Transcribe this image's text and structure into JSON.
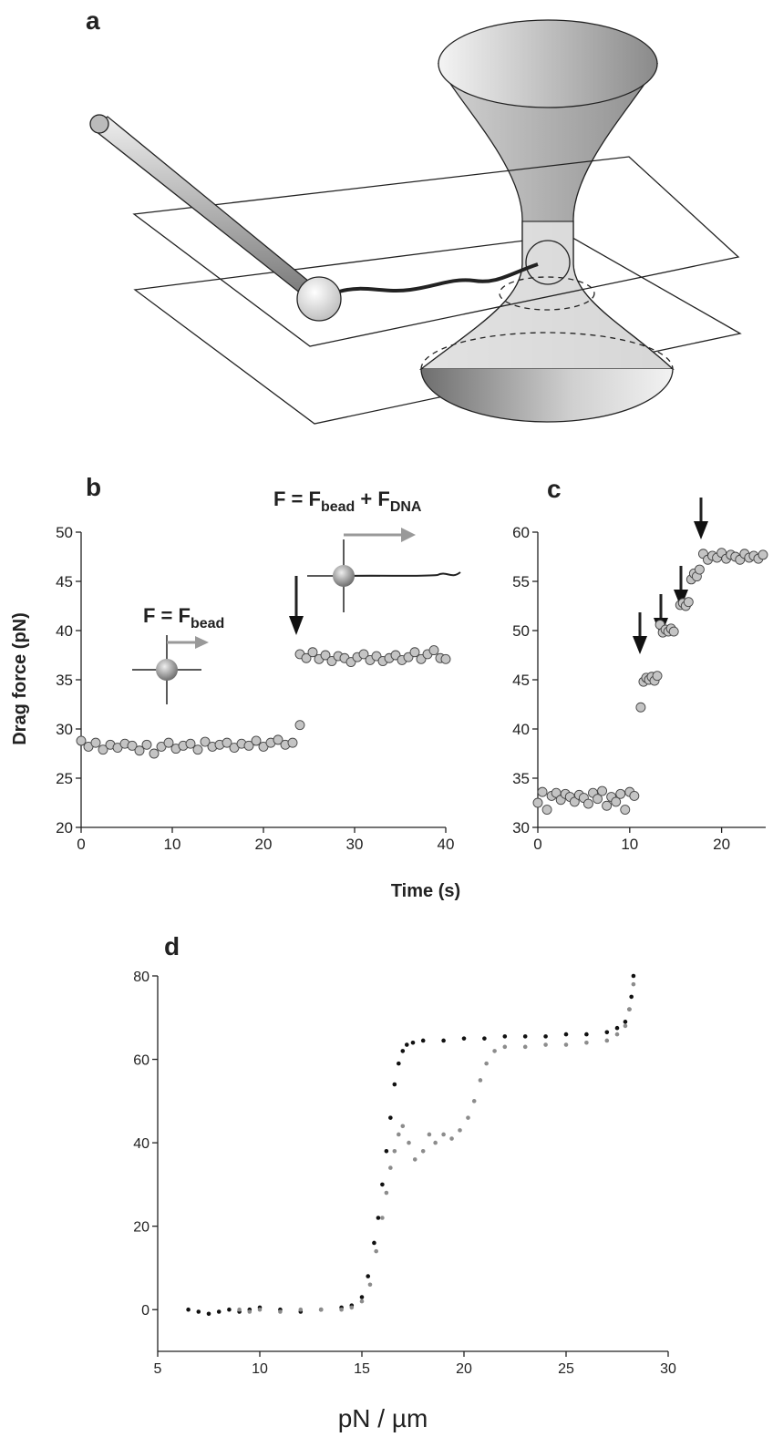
{
  "panel_labels": [
    "a",
    "b",
    "c",
    "d"
  ],
  "time_label": "Time (s)",
  "chart_data": [
    {
      "type": "scatter",
      "ylabel": "Drag force (pN)",
      "marker_color": "#c4c4c4",
      "annotations": [
        [
          {
            "text": "F = F",
            "sub": false
          },
          {
            "text": "bead",
            "sub": true
          }
        ],
        [
          {
            "text": "F = F",
            "sub": false
          },
          {
            "text": "bead",
            "sub": true
          },
          {
            "text": " + F",
            "sub": false
          },
          {
            "text": "DNA",
            "sub": true
          }
        ]
      ],
      "xlim": [
        0,
        40
      ],
      "xticks": [
        0,
        10,
        20,
        30,
        40
      ],
      "ylim": [
        20,
        50
      ],
      "yticks": [
        20,
        25,
        30,
        35,
        40,
        45,
        50
      ],
      "x": [
        0,
        0.8,
        1.6,
        2.4,
        3.2,
        4,
        4.8,
        5.6,
        6.4,
        7.2,
        8,
        8.8,
        9.6,
        10.4,
        11.2,
        12,
        12.8,
        13.6,
        14.4,
        15.2,
        16,
        16.8,
        17.6,
        18.4,
        19.2,
        20,
        20.8,
        21.6,
        22.4,
        23.2,
        24,
        24,
        24.7,
        25.4,
        26.1,
        26.8,
        27.5,
        28.2,
        28.9,
        29.6,
        30.3,
        31,
        31.7,
        32.4,
        33.1,
        33.8,
        34.5,
        35.2,
        35.9,
        36.6,
        37.3,
        38,
        38.7,
        39.4,
        40
      ],
      "values": [
        28.8,
        28.2,
        28.6,
        27.9,
        28.4,
        28.1,
        28.5,
        28.3,
        27.8,
        28.4,
        27.5,
        28.2,
        28.6,
        28,
        28.3,
        28.5,
        27.9,
        28.7,
        28.2,
        28.4,
        28.6,
        28.1,
        28.5,
        28.3,
        28.8,
        28.2,
        28.6,
        28.9,
        28.4,
        28.6,
        30.4,
        37.6,
        37.2,
        37.8,
        37.1,
        37.5,
        36.9,
        37.4,
        37.2,
        36.8,
        37.3,
        37.6,
        37,
        37.4,
        36.9,
        37.2,
        37.5,
        37,
        37.3,
        37.8,
        37.1,
        37.6,
        38,
        37.2,
        37.1
      ]
    },
    {
      "type": "scatter",
      "marker_color": "#c4c4c4",
      "xlim": [
        0,
        24.8
      ],
      "xticks": [
        0,
        10,
        20
      ],
      "ylim": [
        30,
        60
      ],
      "yticks": [
        30,
        35,
        40,
        45,
        50,
        55,
        60
      ],
      "x": [
        0,
        0.5,
        1,
        1.5,
        2,
        2.5,
        3,
        3.5,
        4,
        4.5,
        5,
        5.5,
        6,
        6.5,
        7,
        7.5,
        8,
        8.5,
        9,
        9.5,
        10,
        10.5,
        11.2,
        11.5,
        11.8,
        12.1,
        12.4,
        12.7,
        13,
        13.3,
        13.6,
        13.9,
        14.2,
        14.5,
        14.8,
        15.5,
        15.8,
        16.1,
        16.4,
        16.7,
        17,
        17.3,
        17.6,
        18,
        18.5,
        19,
        19.5,
        20,
        20.5,
        21,
        21.5,
        22,
        22.5,
        23,
        23.5,
        24,
        24.5
      ],
      "values": [
        32.5,
        33.6,
        31.8,
        33.2,
        33.5,
        32.8,
        33.4,
        33.1,
        32.6,
        33.3,
        33,
        32.4,
        33.5,
        32.9,
        33.7,
        32.2,
        33.1,
        32.6,
        33.4,
        31.8,
        33.6,
        33.2,
        42.2,
        44.8,
        45.2,
        45,
        45.3,
        44.9,
        45.4,
        50.6,
        49.8,
        50.1,
        49.9,
        50.2,
        49.9,
        52.6,
        52.8,
        52.5,
        52.9,
        55.2,
        55.8,
        55.5,
        56.2,
        57.8,
        57.2,
        57.6,
        57.4,
        57.9,
        57.3,
        57.7,
        57.5,
        57.2,
        57.8,
        57.4,
        57.6,
        57.3,
        57.7
      ]
    },
    {
      "type": "scatter",
      "xlabel": "pN / µm",
      "xlim": [
        5,
        30
      ],
      "xticks": [
        5,
        10,
        15,
        20,
        25,
        30
      ],
      "ylim": [
        -10,
        80
      ],
      "yticks": [
        0,
        20,
        40,
        60,
        80
      ],
      "series": [
        {
          "color": "#111111",
          "x": [
            6.5,
            7,
            7.5,
            8,
            8.5,
            9,
            9.5,
            10,
            11,
            12,
            13,
            14,
            14.5,
            15,
            15.3,
            15.6,
            15.8,
            16,
            16.2,
            16.4,
            16.6,
            16.8,
            17,
            17.2,
            17.5,
            18,
            19,
            20,
            21,
            22,
            23,
            24,
            25,
            26,
            27,
            27.5,
            27.9,
            28.1,
            28.2,
            28.3
          ],
          "values": [
            0,
            -0.5,
            -1,
            -0.5,
            0,
            -0.5,
            0,
            0.5,
            0,
            -0.5,
            0,
            0.5,
            1,
            3,
            8,
            16,
            22,
            30,
            38,
            46,
            54,
            59,
            62,
            63.5,
            64,
            64.5,
            64.5,
            65,
            65,
            65.5,
            65.5,
            65.5,
            66,
            66,
            66.5,
            67.5,
            69,
            72,
            75,
            80
          ]
        },
        {
          "color": "#8c8c8c",
          "x": [
            9,
            9.5,
            10,
            11,
            12,
            13,
            14,
            14.5,
            15,
            15.4,
            15.7,
            16,
            16.2,
            16.4,
            16.6,
            16.8,
            17,
            17.3,
            17.6,
            18,
            18.3,
            18.6,
            19,
            19.4,
            19.8,
            20.2,
            20.5,
            20.8,
            21.1,
            21.5,
            22,
            23,
            24,
            25,
            26,
            27,
            27.5,
            27.9,
            28.1,
            28.3
          ],
          "values": [
            0,
            -0.5,
            0,
            -0.5,
            0,
            0,
            0,
            0.5,
            2,
            6,
            14,
            22,
            28,
            34,
            38,
            42,
            44,
            40,
            36,
            38,
            42,
            40,
            42,
            41,
            43,
            46,
            50,
            55,
            59,
            62,
            63,
            63,
            63.5,
            63.5,
            64,
            64.5,
            66,
            68,
            72,
            78
          ]
        }
      ]
    }
  ]
}
